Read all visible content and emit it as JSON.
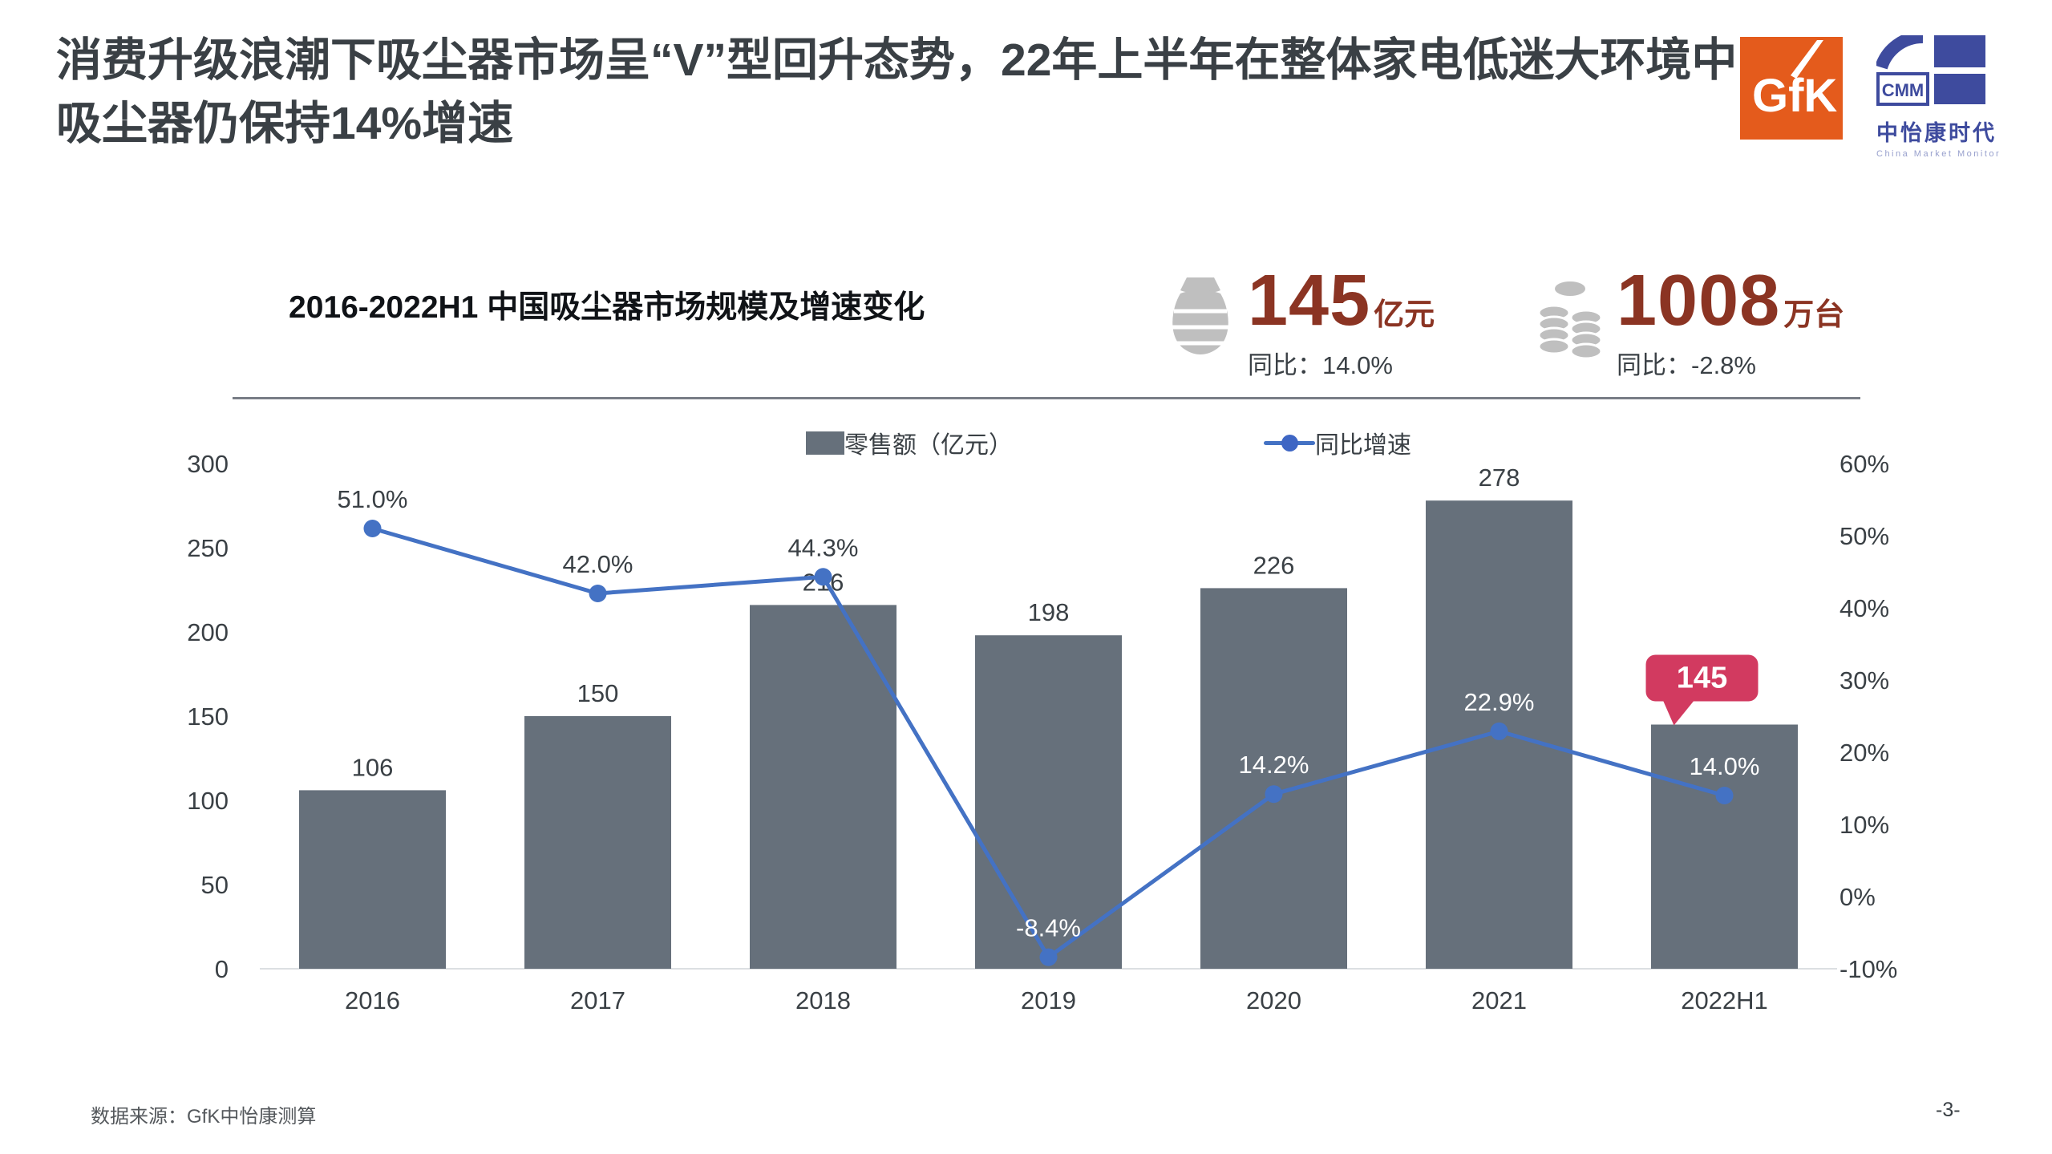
{
  "page": {
    "title": "消费升级浪潮下吸尘器市场呈“V”型回升态势，22年上半年在整体家电低迷大环境中吸尘器仍保持14%增速",
    "source": "数据来源：GfK中怡康测算",
    "page_number": "-3-"
  },
  "logos": {
    "gfk_text": "GfK",
    "cmm_abbr": "CMM",
    "cmm_name": "中怡康时代",
    "cmm_subtitle": "China Market Monitor"
  },
  "chart_header": {
    "title": "2016-2022H1 中国吸尘器市场规模及增速变化",
    "stats": [
      {
        "icon": "money-bag-icon",
        "value": "145",
        "unit": "亿元",
        "yoy_label": "同比：14.0%"
      },
      {
        "icon": "coins-icon",
        "value": "1008",
        "unit": "万台",
        "yoy_label": "同比：-2.8%"
      }
    ]
  },
  "legend": [
    {
      "label": "零售额（亿元）"
    },
    {
      "label": "同比增速"
    }
  ],
  "chart_data": {
    "type": "bar+line",
    "categories": [
      "2016",
      "2017",
      "2018",
      "2019",
      "2020",
      "2021",
      "2022H1"
    ],
    "series": [
      {
        "name": "零售额（亿元）",
        "type": "bar",
        "axis": "left",
        "color": "#66707B",
        "values": [
          106,
          150,
          216,
          198,
          226,
          278,
          145
        ]
      },
      {
        "name": "同比增速",
        "type": "line",
        "axis": "right",
        "color": "#4472C4",
        "values": [
          51.0,
          42.0,
          44.3,
          -8.4,
          14.2,
          22.9,
          14.0
        ],
        "labels": [
          "51.0%",
          "42.0%",
          "44.3%",
          "-8.4%",
          "14.2%",
          "22.9%",
          "14.0%"
        ]
      }
    ],
    "left_axis": {
      "min": 0,
      "max": 300,
      "step": 50,
      "ticks": [
        "300",
        "250",
        "200",
        "150",
        "100",
        "50",
        "0"
      ]
    },
    "right_axis": {
      "min": -10,
      "max": 60,
      "step": 10,
      "ticks": [
        "60%",
        "50%",
        "40%",
        "30%",
        "20%",
        "10%",
        "0%",
        "-10%"
      ]
    },
    "grid": "off",
    "legend_position": "top-center",
    "highlight": {
      "category": "2022H1",
      "label": "145",
      "color": "#D23A60"
    }
  },
  "colors": {
    "title_text": "#3A4045",
    "bar": "#66707B",
    "line": "#4472C4",
    "highlight": "#D23A60",
    "stat_number": "#8B3423",
    "gfk_orange": "#E45B1C",
    "cmm_blue": "#3E4B9E",
    "axis_line": "#DCDFE2",
    "label_on_bar": "#FFFFFF"
  }
}
